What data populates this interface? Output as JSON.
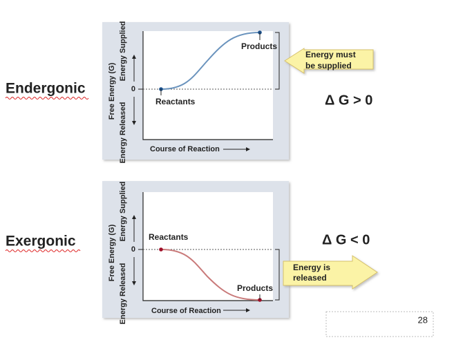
{
  "slide_number": "28",
  "panels": [
    {
      "label": "Endergonic",
      "y_axis_label": "Free Energy (G)",
      "y_axis_upper": "Energy Supplied",
      "y_axis_lower": "Energy Released",
      "zero_label": "0",
      "x_axis_label": "Course of Reaction",
      "start_label": "Reactants",
      "end_label": "Products",
      "callout": [
        "Energy must",
        "be supplied"
      ],
      "delta": "Δ G > 0"
    },
    {
      "label": "Exergonic",
      "y_axis_label": "Free Energy (G)",
      "y_axis_upper": "Energy Supplied",
      "y_axis_lower": "Energy Released",
      "zero_label": "0",
      "x_axis_label": "Course of Reaction",
      "start_label": "Reactants",
      "end_label": "Products",
      "callout": [
        "Energy is",
        "released"
      ],
      "delta": "Δ G < 0"
    }
  ]
}
